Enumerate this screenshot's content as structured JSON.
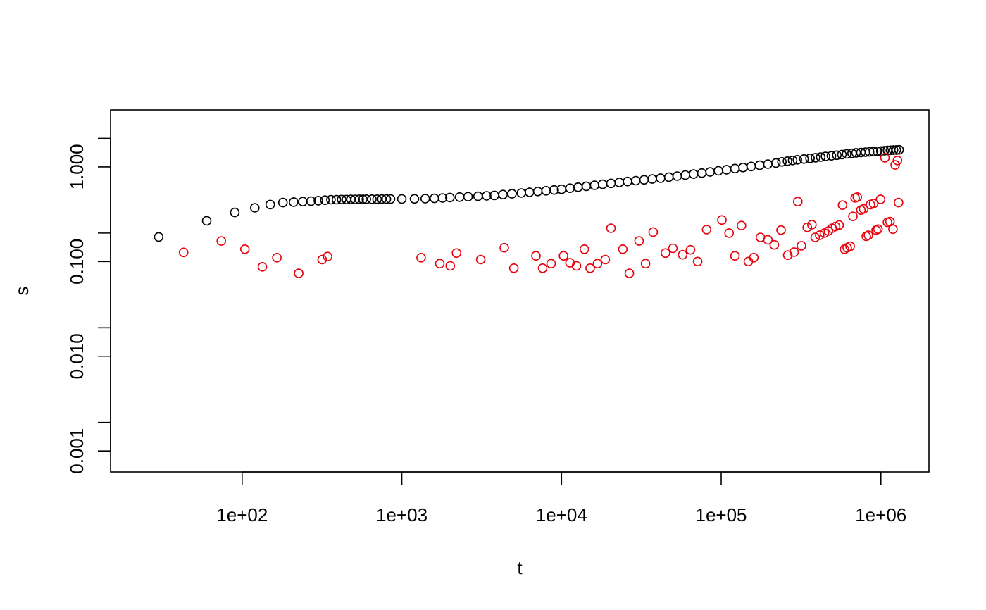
{
  "chart_data": {
    "type": "scatter",
    "title": "",
    "xlabel": "t",
    "ylabel": "s",
    "x_scale": "log",
    "y_scale": "log",
    "xlim": [
      15,
      2000000
    ],
    "ylim": [
      0.0006,
      4.0
    ],
    "x_ticks": [
      {
        "value": 100,
        "label": "1e+02"
      },
      {
        "value": 1000,
        "label": "1e+03"
      },
      {
        "value": 10000,
        "label": "1e+04"
      },
      {
        "value": 100000,
        "label": "1e+05"
      },
      {
        "value": 1000000,
        "label": "1e+06"
      }
    ],
    "y_ticks": [
      {
        "value": 0.001,
        "label": "0.001"
      },
      {
        "value": 0.002,
        "label": ""
      },
      {
        "value": 0.01,
        "label": "0.010"
      },
      {
        "value": 0.02,
        "label": ""
      },
      {
        "value": 0.1,
        "label": "0.100"
      },
      {
        "value": 0.2,
        "label": ""
      },
      {
        "value": 1.0,
        "label": "1.000"
      },
      {
        "value": 2.0,
        "label": ""
      }
    ],
    "grid": false,
    "legend": "none",
    "series": [
      {
        "color": "#000000",
        "points": [
          [
            30,
            0.182
          ],
          [
            60,
            0.27
          ],
          [
            90,
            0.33
          ],
          [
            120,
            0.37
          ],
          [
            150,
            0.4
          ],
          [
            180,
            0.42
          ],
          [
            210,
            0.425
          ],
          [
            240,
            0.43
          ],
          [
            270,
            0.435
          ],
          [
            300,
            0.44
          ],
          [
            330,
            0.445
          ],
          [
            360,
            0.45
          ],
          [
            390,
            0.45
          ],
          [
            420,
            0.452
          ],
          [
            450,
            0.452
          ],
          [
            480,
            0.454
          ],
          [
            510,
            0.454
          ],
          [
            540,
            0.455
          ],
          [
            570,
            0.455
          ],
          [
            600,
            0.456
          ],
          [
            650,
            0.456
          ],
          [
            700,
            0.456
          ],
          [
            750,
            0.457
          ],
          [
            800,
            0.457
          ],
          [
            850,
            0.457
          ],
          [
            1000,
            0.458
          ],
          [
            1200,
            0.46
          ],
          [
            1400,
            0.462
          ],
          [
            1600,
            0.465
          ],
          [
            1800,
            0.47
          ],
          [
            2000,
            0.475
          ],
          [
            2300,
            0.48
          ],
          [
            2600,
            0.485
          ],
          [
            3000,
            0.49
          ],
          [
            3400,
            0.495
          ],
          [
            3800,
            0.5
          ],
          [
            4300,
            0.51
          ],
          [
            4900,
            0.52
          ],
          [
            5600,
            0.53
          ],
          [
            6300,
            0.54
          ],
          [
            7100,
            0.55
          ],
          [
            8000,
            0.56
          ],
          [
            9000,
            0.57
          ],
          [
            10000,
            0.58
          ],
          [
            11300,
            0.595
          ],
          [
            12700,
            0.61
          ],
          [
            14300,
            0.625
          ],
          [
            16100,
            0.64
          ],
          [
            18100,
            0.655
          ],
          [
            20400,
            0.67
          ],
          [
            23000,
            0.685
          ],
          [
            25900,
            0.7
          ],
          [
            29200,
            0.715
          ],
          [
            32900,
            0.73
          ],
          [
            37000,
            0.745
          ],
          [
            41700,
            0.76
          ],
          [
            47000,
            0.78
          ],
          [
            53000,
            0.8
          ],
          [
            59600,
            0.82
          ],
          [
            67100,
            0.84
          ],
          [
            75600,
            0.86
          ],
          [
            85200,
            0.885
          ],
          [
            96000,
            0.91
          ],
          [
            108000,
            0.935
          ],
          [
            122000,
            0.96
          ],
          [
            137000,
            0.985
          ],
          [
            154000,
            1.01
          ],
          [
            174000,
            1.04
          ],
          [
            196000,
            1.07
          ],
          [
            220000,
            1.1
          ],
          [
            240000,
            1.13
          ],
          [
            260000,
            1.15
          ],
          [
            280000,
            1.17
          ],
          [
            300000,
            1.19
          ],
          [
            330000,
            1.21
          ],
          [
            360000,
            1.23
          ],
          [
            390000,
            1.25
          ],
          [
            420000,
            1.27
          ],
          [
            450000,
            1.29
          ],
          [
            490000,
            1.31
          ],
          [
            530000,
            1.33
          ],
          [
            570000,
            1.35
          ],
          [
            610000,
            1.37
          ],
          [
            660000,
            1.39
          ],
          [
            700000,
            1.41
          ],
          [
            750000,
            1.42
          ],
          [
            800000,
            1.43
          ],
          [
            850000,
            1.44
          ],
          [
            900000,
            1.45
          ],
          [
            950000,
            1.46
          ],
          [
            1000000,
            1.47
          ],
          [
            1050000,
            1.48
          ],
          [
            1100000,
            1.49
          ],
          [
            1150000,
            1.5
          ],
          [
            1200000,
            1.505
          ],
          [
            1250000,
            1.51
          ],
          [
            1300000,
            1.515
          ]
        ]
      },
      {
        "color": "#e8000b",
        "points": [
          [
            43,
            0.125
          ],
          [
            74,
            0.165
          ],
          [
            104,
            0.135
          ],
          [
            134,
            0.088
          ],
          [
            165,
            0.11
          ],
          [
            226,
            0.075
          ],
          [
            317,
            0.105
          ],
          [
            343,
            0.113
          ],
          [
            1320,
            0.11
          ],
          [
            1730,
            0.095
          ],
          [
            2010,
            0.09
          ],
          [
            2200,
            0.123
          ],
          [
            3120,
            0.105
          ],
          [
            4380,
            0.14
          ],
          [
            5030,
            0.085
          ],
          [
            6920,
            0.115
          ],
          [
            7620,
            0.085
          ],
          [
            8610,
            0.095
          ],
          [
            10300,
            0.115
          ],
          [
            11300,
            0.097
          ],
          [
            12400,
            0.09
          ],
          [
            13900,
            0.135
          ],
          [
            15100,
            0.085
          ],
          [
            16800,
            0.095
          ],
          [
            18800,
            0.105
          ],
          [
            20400,
            0.225
          ],
          [
            24200,
            0.135
          ],
          [
            26600,
            0.075
          ],
          [
            30600,
            0.165
          ],
          [
            33600,
            0.095
          ],
          [
            37500,
            0.205
          ],
          [
            44800,
            0.123
          ],
          [
            49800,
            0.138
          ],
          [
            57400,
            0.118
          ],
          [
            64200,
            0.133
          ],
          [
            71200,
            0.1
          ],
          [
            81000,
            0.218
          ],
          [
            101000,
            0.275
          ],
          [
            112000,
            0.2
          ],
          [
            122000,
            0.115
          ],
          [
            134000,
            0.24
          ],
          [
            148000,
            0.1
          ],
          [
            160000,
            0.11
          ],
          [
            176000,
            0.18
          ],
          [
            196000,
            0.17
          ],
          [
            215000,
            0.15
          ],
          [
            237000,
            0.215
          ],
          [
            261000,
            0.117
          ],
          [
            286000,
            0.126
          ],
          [
            302000,
            0.43
          ],
          [
            318000,
            0.147
          ],
          [
            346000,
            0.23
          ],
          [
            370000,
            0.245
          ],
          [
            388000,
            0.18
          ],
          [
            414000,
            0.19
          ],
          [
            443000,
            0.2
          ],
          [
            469000,
            0.21
          ],
          [
            495000,
            0.225
          ],
          [
            520000,
            0.235
          ],
          [
            548000,
            0.243
          ],
          [
            575000,
            0.395
          ],
          [
            592000,
            0.135
          ],
          [
            615000,
            0.14
          ],
          [
            642000,
            0.145
          ],
          [
            668000,
            0.3
          ],
          [
            690000,
            0.47
          ],
          [
            711000,
            0.48
          ],
          [
            750000,
            0.35
          ],
          [
            780000,
            0.36
          ],
          [
            810000,
            0.185
          ],
          [
            835000,
            0.19
          ],
          [
            860000,
            0.4
          ],
          [
            900000,
            0.41
          ],
          [
            934000,
            0.215
          ],
          [
            960000,
            0.22
          ],
          [
            995000,
            0.455
          ],
          [
            1060000,
            1.25
          ],
          [
            1100000,
            0.26
          ],
          [
            1140000,
            0.265
          ],
          [
            1190000,
            0.22
          ],
          [
            1230000,
            1.05
          ],
          [
            1270000,
            1.17
          ],
          [
            1290000,
            0.42
          ]
        ]
      }
    ]
  }
}
